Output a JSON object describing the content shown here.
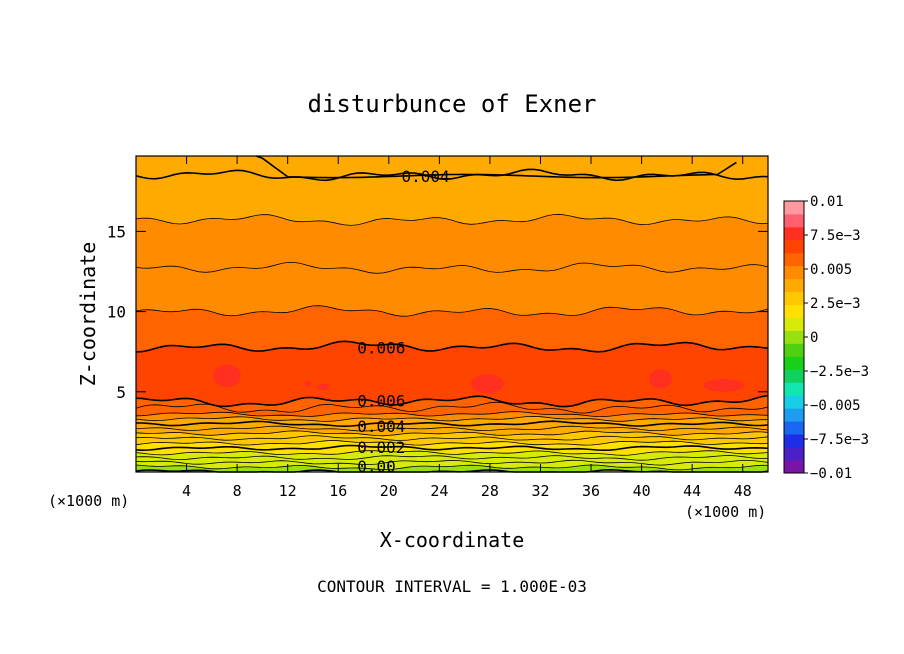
{
  "chart_data": {
    "type": "heatmap",
    "subtype": "filled-contour",
    "title": "disturbunce of Exner",
    "xlabel": "X-coordinate",
    "ylabel": "Z-coordinate",
    "x_unit_left": "(×1000 m)",
    "x_unit_right": "(×1000 m)",
    "xlim": [
      0,
      50
    ],
    "ylim": [
      0,
      19.7
    ],
    "x_ticks": [
      4,
      8,
      12,
      16,
      20,
      24,
      28,
      32,
      36,
      40,
      44,
      48
    ],
    "y_ticks": [
      5,
      10,
      15
    ],
    "footer": "CONTOUR INTERVAL = 1.000E-03",
    "colorbar": {
      "range": [
        -0.01,
        0.01
      ],
      "tick_values": [
        0.01,
        0.0075,
        0.005,
        0.0025,
        0,
        -0.0025,
        -0.005,
        -0.0075,
        -0.01
      ],
      "tick_labels": [
        "0.01",
        "7.5e−3",
        "0.005",
        "2.5e−3",
        "0",
        "−2.5e−3",
        "−0.005",
        "−7.5e−3",
        "−0.01"
      ],
      "colors": [
        "#7a13a8",
        "#4a20c8",
        "#1d2de8",
        "#1966f0",
        "#1e9cf2",
        "#16cfe6",
        "#10e6b0",
        "#10d060",
        "#18d018",
        "#50d010",
        "#98e010",
        "#d8ea08",
        "#ffe000",
        "#ffc800",
        "#ffaa00",
        "#ff8c00",
        "#ff6400",
        "#ff4400",
        "#ff3020",
        "#ff6070",
        "#ff98a0"
      ]
    },
    "contour_labels": [
      {
        "text": "0.004",
        "x": 21.0,
        "z": 18.4
      },
      {
        "text": "0.006",
        "x": 17.5,
        "z": 7.7
      },
      {
        "text": "0.006",
        "x": 17.5,
        "z": 4.4
      },
      {
        "text": "0.004",
        "x": 17.5,
        "z": 2.8
      },
      {
        "text": "0.002",
        "x": 17.5,
        "z": 1.5
      },
      {
        "text": "0.00",
        "x": 17.5,
        "z": 0.3
      }
    ],
    "field_profile": [
      {
        "z": 0.0,
        "value": 0.0
      },
      {
        "z": 0.6,
        "value": 0.0008
      },
      {
        "z": 1.2,
        "value": 0.0016
      },
      {
        "z": 1.8,
        "value": 0.0024
      },
      {
        "z": 2.4,
        "value": 0.0032
      },
      {
        "z": 3.0,
        "value": 0.004
      },
      {
        "z": 3.6,
        "value": 0.005
      },
      {
        "z": 4.4,
        "value": 0.006
      },
      {
        "z": 6.0,
        "value": 0.0066
      },
      {
        "z": 7.8,
        "value": 0.006
      },
      {
        "z": 10.0,
        "value": 0.0053
      },
      {
        "z": 12.7,
        "value": 0.005
      },
      {
        "z": 15.7,
        "value": 0.0044
      },
      {
        "z": 18.5,
        "value": 0.004
      },
      {
        "z": 19.7,
        "value": 0.0038
      }
    ]
  }
}
